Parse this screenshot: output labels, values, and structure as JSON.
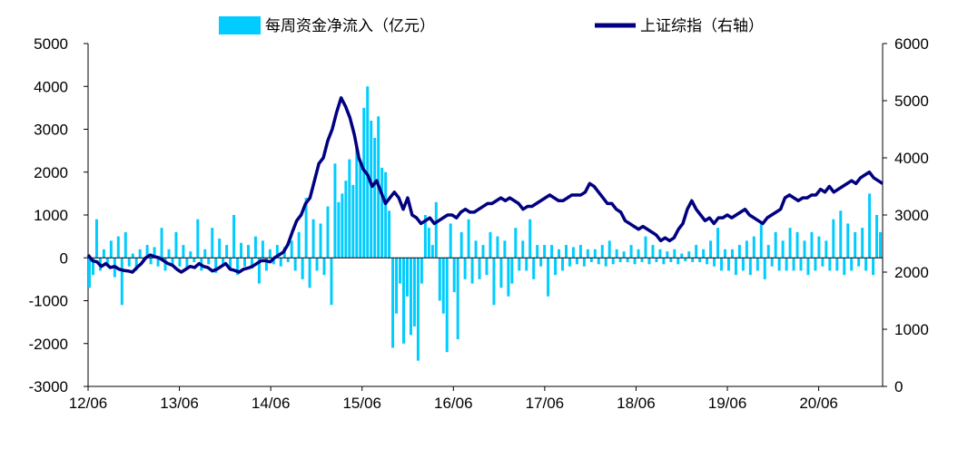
{
  "chart_data": {
    "type": "bar+line",
    "legend": [
      {
        "label": "每周资金净流入（亿元）",
        "kind": "bar",
        "color": "#00CCFF"
      },
      {
        "label": "上证综指（右轴）",
        "kind": "line",
        "color": "#000080"
      }
    ],
    "x_ticks": [
      "12/06",
      "13/06",
      "14/06",
      "15/06",
      "16/06",
      "17/06",
      "18/06",
      "19/06",
      "20/06"
    ],
    "x_start": "2012-06",
    "x_end": "2020-12",
    "ylim_left": [
      -3000,
      5000
    ],
    "yticks_left": [
      -3000,
      -2000,
      -1000,
      0,
      1000,
      2000,
      3000,
      4000,
      5000
    ],
    "ylim_right": [
      0,
      6000
    ],
    "yticks_right": [
      0,
      1000,
      2000,
      3000,
      4000,
      5000,
      6000
    ],
    "series": [
      {
        "name": "每周资金净流入（亿元）",
        "type": "bar",
        "axis": "left",
        "color": "#00CCFF",
        "values": [
          -700,
          -400,
          900,
          -300,
          200,
          -200,
          400,
          -450,
          500,
          -1100,
          600,
          -200,
          100,
          -300,
          200,
          -100,
          300,
          -150,
          250,
          -200,
          700,
          -300,
          200,
          -150,
          600,
          -200,
          300,
          -250,
          150,
          -100,
          900,
          -300,
          200,
          -150,
          700,
          -350,
          450,
          -200,
          300,
          -250,
          1000,
          -400,
          350,
          -200,
          300,
          -250,
          500,
          -600,
          400,
          -300,
          200,
          -150,
          300,
          -200,
          250,
          -100,
          400,
          -300,
          600,
          -500,
          1400,
          -700,
          900,
          -300,
          800,
          -400,
          1200,
          -1100,
          2200,
          1300,
          1500,
          1800,
          2300,
          1700,
          2600,
          2200,
          3500,
          4000,
          3200,
          2800,
          3300,
          2100,
          2000,
          1100,
          -2100,
          -1300,
          -600,
          -2000,
          -900,
          -1800,
          -1600,
          -2400,
          -600,
          1000,
          700,
          300,
          1300,
          -1000,
          -1300,
          -2200,
          800,
          -800,
          -1900,
          600,
          -500,
          900,
          -600,
          400,
          -500,
          300,
          -400,
          600,
          -1100,
          500,
          -700,
          400,
          -900,
          -600,
          700,
          -300,
          400,
          -300,
          900,
          -500,
          300,
          -200,
          300,
          -900,
          300,
          -400,
          200,
          -300,
          300,
          -200,
          250,
          -150,
          300,
          -200,
          200,
          -100,
          200,
          -150,
          300,
          -200,
          400,
          -150,
          200,
          -100,
          150,
          -100,
          300,
          -150,
          200,
          -100,
          500,
          -150,
          300,
          -100,
          200,
          -150,
          150,
          -100,
          200,
          -150,
          100,
          -80,
          150,
          -100,
          300,
          -100,
          200,
          -150,
          400,
          -200,
          700,
          -300,
          200,
          -300,
          200,
          -400,
          300,
          -300,
          400,
          -400,
          500,
          -300,
          800,
          -500,
          300,
          -200,
          600,
          -300,
          400,
          -300,
          700,
          -300,
          600,
          -300,
          400,
          -400,
          600,
          -300,
          500,
          -200,
          400,
          -300,
          900,
          -300,
          1100,
          -400,
          800,
          -300,
          600,
          -200,
          700,
          -300,
          1500,
          -400,
          1000,
          600
        ]
      },
      {
        "name": "上证综指（右轴）",
        "type": "line",
        "axis": "right",
        "color": "#000080",
        "values": [
          2300,
          2200,
          2180,
          2100,
          2150,
          2080,
          2100,
          2050,
          2030,
          2020,
          2000,
          2080,
          2150,
          2250,
          2300,
          2270,
          2250,
          2200,
          2150,
          2120,
          2050,
          2000,
          2050,
          2100,
          2080,
          2150,
          2100,
          2080,
          2020,
          2050,
          2100,
          2150,
          2050,
          2030,
          2000,
          2050,
          2070,
          2100,
          2150,
          2200,
          2200,
          2180,
          2250,
          2300,
          2350,
          2480,
          2700,
          2900,
          3000,
          3200,
          3300,
          3600,
          3900,
          4000,
          4300,
          4500,
          4800,
          5050,
          4900,
          4700,
          4400,
          4000,
          3800,
          3700,
          3500,
          3600,
          3400,
          3200,
          3300,
          3400,
          3300,
          3100,
          3300,
          3000,
          2950,
          2850,
          2900,
          2950,
          2850,
          2900,
          2950,
          3000,
          3000,
          2950,
          3050,
          3100,
          3050,
          3050,
          3100,
          3150,
          3200,
          3200,
          3250,
          3300,
          3250,
          3300,
          3250,
          3200,
          3100,
          3150,
          3150,
          3200,
          3250,
          3300,
          3350,
          3300,
          3250,
          3250,
          3300,
          3350,
          3350,
          3350,
          3400,
          3550,
          3500,
          3400,
          3300,
          3200,
          3200,
          3100,
          3050,
          2900,
          2850,
          2800,
          2750,
          2800,
          2750,
          2700,
          2650,
          2550,
          2600,
          2550,
          2600,
          2750,
          2850,
          3100,
          3250,
          3100,
          3000,
          2900,
          2950,
          2850,
          2950,
          2950,
          3000,
          2950,
          3000,
          3050,
          3100,
          3000,
          2950,
          2900,
          2850,
          2950,
          3000,
          3050,
          3100,
          3300,
          3350,
          3300,
          3250,
          3300,
          3300,
          3350,
          3350,
          3450,
          3400,
          3500,
          3400,
          3450,
          3500,
          3550,
          3600,
          3550,
          3650,
          3700,
          3750,
          3650,
          3600,
          3550
        ]
      }
    ]
  }
}
